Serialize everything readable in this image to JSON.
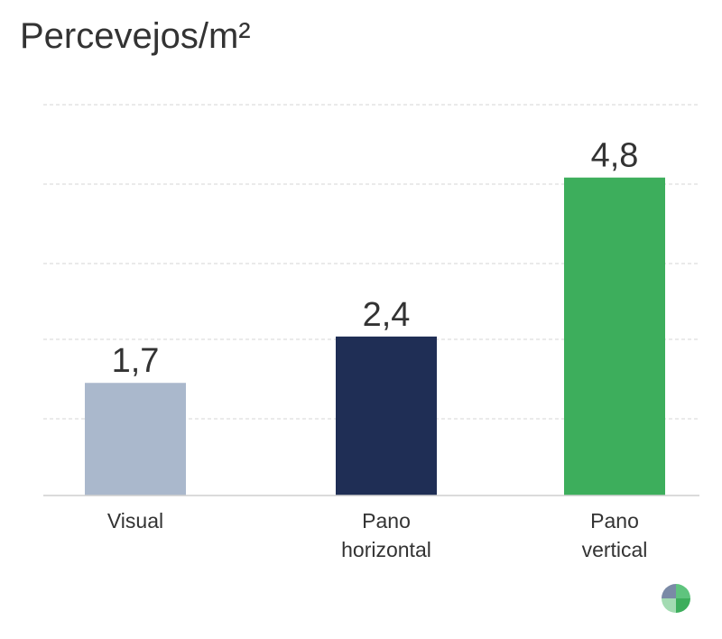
{
  "chart_data": {
    "type": "bar",
    "title": "Percevejos/m²",
    "xlabel": "",
    "ylabel": "",
    "ylim": [
      0,
      5.9
    ],
    "grid": true,
    "categories": [
      [
        "Visual"
      ],
      [
        "Pano",
        "horizontal"
      ],
      [
        "Pano",
        "vertical"
      ]
    ],
    "values": [
      1.7,
      2.4,
      4.8
    ],
    "value_labels": [
      "1,7",
      "2,4",
      "4,8"
    ],
    "colors": [
      "#aab8cc",
      "#1f2e55",
      "#3dae5c"
    ]
  },
  "logo": {
    "colors": [
      "#7a8aa6",
      "#5fc47e",
      "#a3dbb2",
      "#3dae5c"
    ]
  }
}
